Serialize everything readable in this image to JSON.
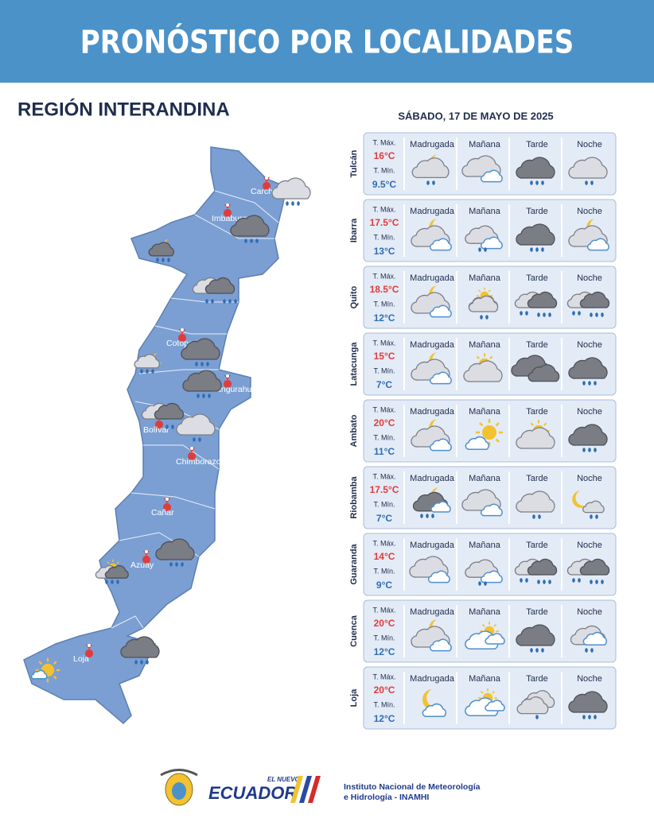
{
  "header": {
    "title": "PRONÓSTICO POR LOCALIDADES"
  },
  "region": {
    "title": "REGIÓN INTERANDINA"
  },
  "forecast": {
    "date": "SÁBADO, 17 DE MAYO DE 2025",
    "labels": {
      "tmax": "T. Máx.",
      "tmin": "T. Mín."
    },
    "periods": [
      "Madrugada",
      "Mañana",
      "Tarde",
      "Noche"
    ],
    "cities": [
      {
        "name": "Tulcán",
        "tmax": "16°C",
        "tmin": "9.5°C"
      },
      {
        "name": "Ibarra",
        "tmax": "17.5°C",
        "tmin": "13°C"
      },
      {
        "name": "Quito",
        "tmax": "18.5°C",
        "tmin": "12°C"
      },
      {
        "name": "Latacunga",
        "tmax": "15°C",
        "tmin": "7°C"
      },
      {
        "name": "Ambato",
        "tmax": "20°C",
        "tmin": "11°C"
      },
      {
        "name": "Riobamba",
        "tmax": "17.5°C",
        "tmin": "7°C"
      },
      {
        "name": "Guaranda",
        "tmax": "14°C",
        "tmin": "9°C"
      },
      {
        "name": "Cuenca",
        "tmax": "20°C",
        "tmin": "12°C"
      },
      {
        "name": "Loja",
        "tmax": "20°C",
        "tmin": "12°C"
      }
    ]
  },
  "map": {
    "labels": [
      "Carchi",
      "Imbabura",
      "Cotopaxi",
      "Tungurahua",
      "Bolívar",
      "Chimborazo",
      "Cañar",
      "Azuay",
      "Loja"
    ]
  },
  "footer": {
    "brand_small": "EL NUEVO",
    "brand": "ECUADOR",
    "institute": [
      "Instituto Nacional de Meteorología",
      "e Hidrología - INAMHI"
    ]
  }
}
